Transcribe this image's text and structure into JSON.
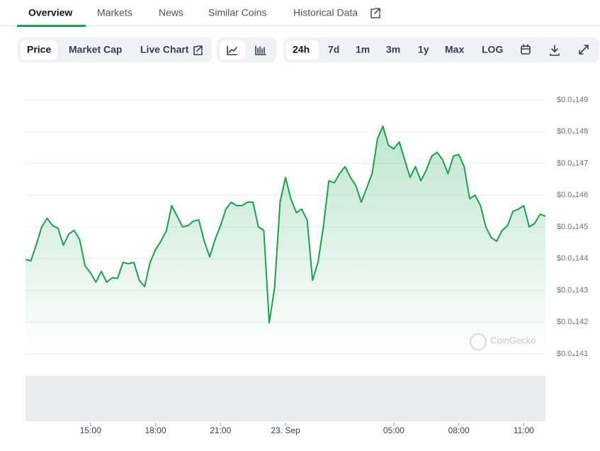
{
  "tabs": [
    "Overview",
    "Markets",
    "News",
    "Similar Coins",
    "Historical Data"
  ],
  "chart_buttons": [
    "Price",
    "Market Cap",
    "Live Chart"
  ],
  "range_buttons": [
    "24h",
    "7d",
    "1m",
    "3m",
    "1y",
    "Max",
    "LOG"
  ],
  "watermark": "CoinGecko",
  "chart_data": {
    "type": "line",
    "color": "#16a34a",
    "values": [
      1.4397e-05,
      1.4393e-05,
      1.4444e-05,
      1.45e-05,
      1.4527e-05,
      1.4504e-05,
      1.4496e-05,
      1.4442e-05,
      1.4478e-05,
      1.4489e-05,
      1.446e-05,
      1.4377e-05,
      1.4355e-05,
      1.4326e-05,
      1.436e-05,
      1.4326e-05,
      1.434e-05,
      1.4338e-05,
      1.4388e-05,
      1.4384e-05,
      1.4388e-05,
      1.4332e-05,
      1.4312e-05,
      1.4388e-05,
      1.4428e-05,
      1.4455e-05,
      1.4487e-05,
      1.4567e-05,
      1.4534e-05,
      1.45e-05,
      1.4504e-05,
      1.4518e-05,
      1.4522e-05,
      1.4455e-05,
      1.4406e-05,
      1.446e-05,
      1.4504e-05,
      1.4556e-05,
      1.4578e-05,
      1.4567e-05,
      1.4567e-05,
      1.4578e-05,
      1.4578e-05,
      1.45e-05,
      1.4489e-05,
      1.4198e-05,
      1.431e-05,
      1.4578e-05,
      1.4656e-05,
      1.4589e-05,
      1.4545e-05,
      1.4556e-05,
      1.4522e-05,
      1.4332e-05,
      1.4388e-05,
      1.45e-05,
      1.4645e-05,
      1.4639e-05,
      1.4668e-05,
      1.469e-05,
      1.4656e-05,
      1.463e-05,
      1.4578e-05,
      1.4623e-05,
      1.4668e-05,
      1.4779e-05,
      1.4817e-05,
      1.4757e-05,
      1.4746e-05,
      1.4768e-05,
      1.4712e-05,
      1.4656e-05,
      1.469e-05,
      1.4645e-05,
      1.4679e-05,
      1.4723e-05,
      1.4735e-05,
      1.4712e-05,
      1.4668e-05,
      1.4723e-05,
      1.4728e-05,
      1.469e-05,
      1.4589e-05,
      1.46e-05,
      1.4567e-05,
      1.45e-05,
      1.4466e-05,
      1.4455e-05,
      1.4489e-05,
      1.4504e-05,
      1.4549e-05,
      1.4556e-05,
      1.4567e-05,
      1.45e-05,
      1.4511e-05,
      1.454e-05,
      1.4534e-05
    ],
    "xlim": [
      0,
      96
    ],
    "xticks": [
      {
        "value": 12,
        "label": "15:00"
      },
      {
        "value": 24,
        "label": "18:00"
      },
      {
        "value": 36,
        "label": "21:00"
      },
      {
        "value": 48,
        "label": "23. Sep"
      },
      {
        "value": 68,
        "label": "05:00"
      },
      {
        "value": 80,
        "label": "08:00"
      },
      {
        "value": 92,
        "label": "11:00"
      }
    ],
    "ylim": [
      1.41e-05,
      1.49e-05
    ],
    "yticks": [
      {
        "value": 1.41e-05,
        "label": "$0.0₄141"
      },
      {
        "value": 1.42e-05,
        "label": "$0.0₄142"
      },
      {
        "value": 1.43e-05,
        "label": "$0.0₄143"
      },
      {
        "value": 1.44e-05,
        "label": "$0.0₄144"
      },
      {
        "value": 1.45e-05,
        "label": "$0.0₄145"
      },
      {
        "value": 1.46e-05,
        "label": "$0.0₄146"
      },
      {
        "value": 1.47e-05,
        "label": "$0.0₄147"
      },
      {
        "value": 1.48e-05,
        "label": "$0.0₄148"
      },
      {
        "value": 1.49e-05,
        "label": "$0.0₄149"
      }
    ],
    "grid": true
  }
}
